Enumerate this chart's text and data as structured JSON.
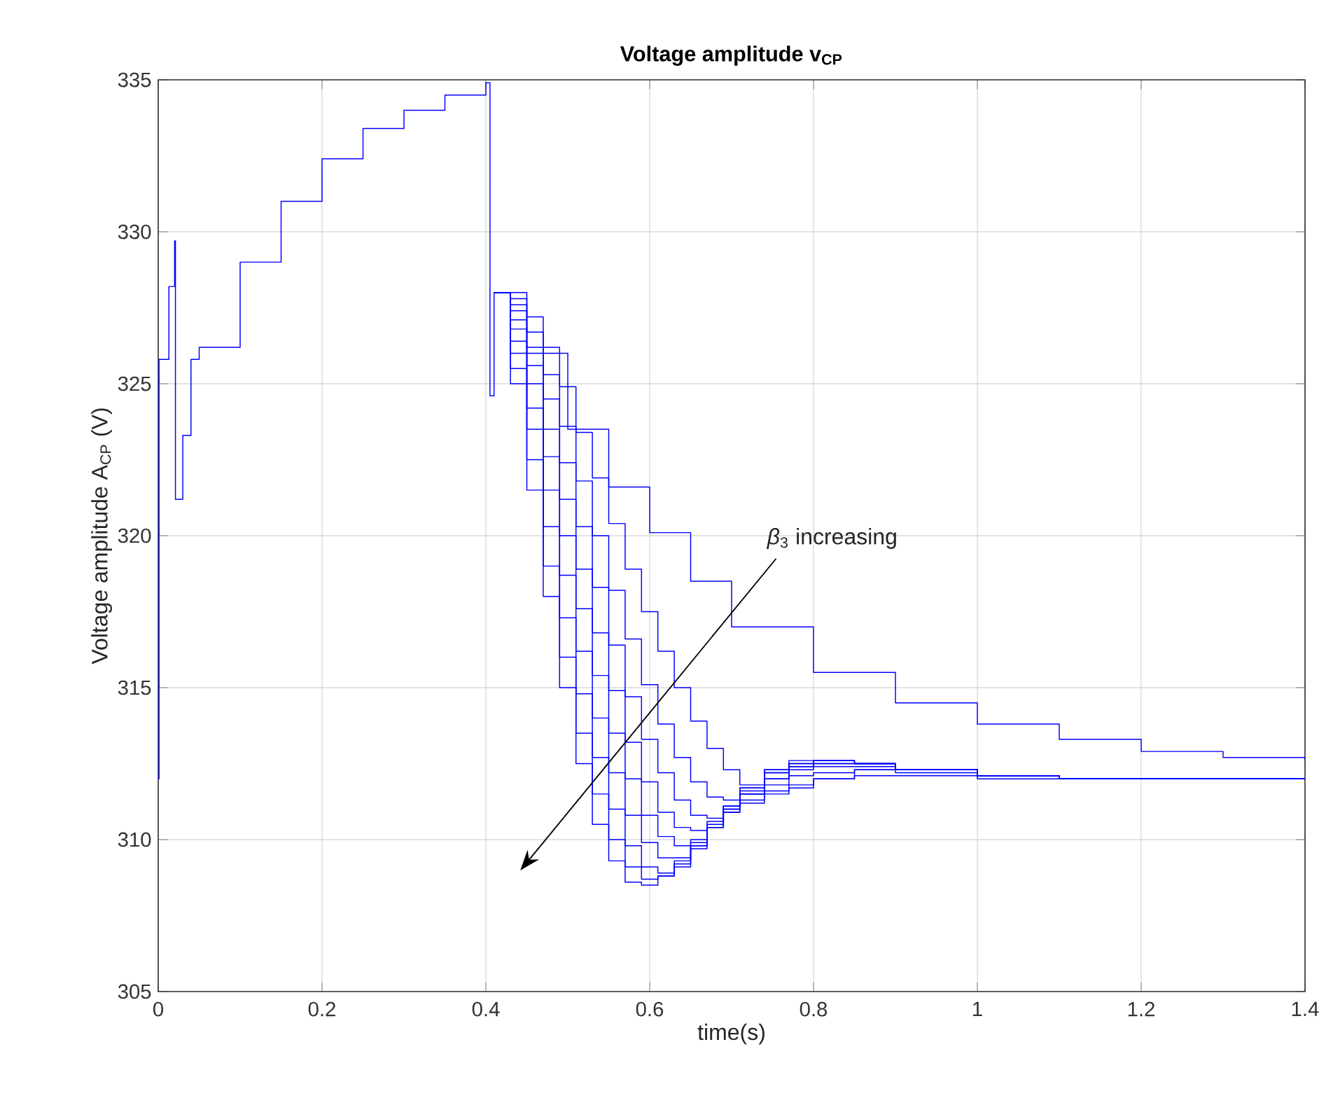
{
  "chart_data": {
    "type": "step",
    "title": "**Voltage amplitude v$_{CP}$**",
    "xlabel": "time(s)",
    "ylabel": "Voltage amplitude A$_{CP}$ (V)",
    "xlim": [
      0,
      1.4
    ],
    "ylim": [
      305,
      335
    ],
    "xticks": [
      0,
      0.2,
      0.4,
      0.6,
      0.8,
      1,
      1.2,
      1.4
    ],
    "yticks": [
      305,
      310,
      315,
      320,
      325,
      330,
      335
    ],
    "grid": true,
    "annotations": [
      "*β*$_{3}$ increasing"
    ],
    "series": [
      {
        "color": "#0000ff",
        "x": [
          0,
          0.001,
          0.013,
          0.02,
          0.021,
          0.03,
          0.04,
          0.05,
          0.1,
          0.15,
          0.2,
          0.25,
          0.3,
          0.35,
          0.4,
          0.405,
          0.41,
          0.45,
          0.5,
          0.55,
          0.6,
          0.65,
          0.7,
          0.8,
          0.9,
          1.0,
          1.1,
          1.2,
          1.3,
          1.4
        ],
        "values": [
          312,
          325.8,
          328.2,
          329.7,
          321.2,
          323.3,
          325.8,
          326.2,
          329.0,
          331.0,
          332.4,
          333.4,
          334.0,
          334.5,
          334.9,
          324.6,
          328,
          326,
          323.5,
          321.6,
          320.1,
          318.5,
          317.0,
          315.5,
          314.5,
          313.8,
          313.3,
          312.9,
          312.7,
          312.6
        ]
      },
      {
        "color": "#0000ff",
        "x": [
          0.41,
          0.43,
          0.45,
          0.47,
          0.49,
          0.51,
          0.53,
          0.55,
          0.57,
          0.59,
          0.61,
          0.63,
          0.65,
          0.67,
          0.69,
          0.71,
          0.74,
          0.77,
          0.8,
          0.85,
          0.9,
          1.0,
          1.1,
          1.2,
          1.4
        ],
        "values": [
          328,
          327.8,
          327.2,
          326.2,
          324.9,
          323.4,
          321.9,
          320.4,
          318.9,
          317.5,
          316.2,
          315,
          313.9,
          313,
          312.3,
          311.8,
          311.5,
          311.7,
          312,
          312.3,
          312.3,
          312.1,
          312,
          312,
          312
        ]
      },
      {
        "color": "#0000ff",
        "x": [
          0.41,
          0.43,
          0.45,
          0.47,
          0.49,
          0.51,
          0.53,
          0.55,
          0.57,
          0.59,
          0.61,
          0.63,
          0.65,
          0.67,
          0.69,
          0.71,
          0.74,
          0.77,
          0.8,
          0.85,
          0.9,
          1.0,
          1.1,
          1.2,
          1.4
        ],
        "values": [
          328,
          327.6,
          326.7,
          325.3,
          323.6,
          321.8,
          320,
          318.2,
          316.6,
          315.1,
          313.8,
          312.7,
          311.9,
          311.4,
          311.3,
          311.5,
          312,
          312.4,
          312.5,
          312.5,
          312.3,
          312.1,
          312,
          312,
          312
        ]
      },
      {
        "color": "#0000ff",
        "x": [
          0.41,
          0.43,
          0.45,
          0.47,
          0.49,
          0.51,
          0.53,
          0.55,
          0.57,
          0.59,
          0.61,
          0.63,
          0.65,
          0.67,
          0.69,
          0.71,
          0.74,
          0.77,
          0.8,
          0.85,
          0.9,
          1.0,
          1.1,
          1.2,
          1.4
        ],
        "values": [
          328,
          327.4,
          326.2,
          324.5,
          322.4,
          320.3,
          318.3,
          316.4,
          314.7,
          313.3,
          312.2,
          311.3,
          310.8,
          310.7,
          311,
          311.5,
          312.2,
          312.5,
          312.6,
          312.5,
          312.3,
          312.1,
          312,
          312,
          312
        ]
      },
      {
        "color": "#0000ff",
        "x": [
          0.41,
          0.43,
          0.45,
          0.47,
          0.49,
          0.51,
          0.53,
          0.55,
          0.57,
          0.59,
          0.61,
          0.63,
          0.65,
          0.67,
          0.69,
          0.71,
          0.74,
          0.77,
          0.8,
          0.85,
          0.9,
          1.0,
          1.1,
          1.2,
          1.4
        ],
        "values": [
          328,
          327.1,
          325.6,
          323.5,
          321.2,
          318.9,
          316.8,
          314.9,
          313.2,
          311.9,
          310.9,
          310.4,
          310.3,
          310.6,
          311.1,
          311.7,
          312.3,
          312.6,
          312.6,
          312.5,
          312.3,
          312.1,
          312,
          312,
          312
        ]
      },
      {
        "color": "#0000ff",
        "x": [
          0.41,
          0.43,
          0.45,
          0.47,
          0.49,
          0.51,
          0.53,
          0.55,
          0.57,
          0.59,
          0.61,
          0.63,
          0.65,
          0.67,
          0.69,
          0.71,
          0.74,
          0.77,
          0.8,
          0.85,
          0.9,
          1.0,
          1.1,
          1.2,
          1.4
        ],
        "values": [
          328,
          326.8,
          325,
          322.6,
          320,
          317.6,
          315.4,
          313.5,
          312,
          310.8,
          310.1,
          309.8,
          310,
          310.5,
          311.1,
          311.7,
          312.3,
          312.5,
          312.6,
          312.5,
          312.3,
          312.1,
          312,
          312,
          312
        ]
      },
      {
        "color": "#0000ff",
        "x": [
          0.41,
          0.43,
          0.45,
          0.47,
          0.49,
          0.51,
          0.53,
          0.55,
          0.57,
          0.59,
          0.61,
          0.63,
          0.65,
          0.67,
          0.69,
          0.71,
          0.74,
          0.77,
          0.8,
          0.85,
          0.9,
          1.0,
          1.1,
          1.2,
          1.4
        ],
        "values": [
          328,
          326.4,
          324.2,
          321.5,
          318.7,
          316.2,
          314,
          312.2,
          310.8,
          309.9,
          309.4,
          309.4,
          309.8,
          310.4,
          311.1,
          311.6,
          312.2,
          312.4,
          312.5,
          312.5,
          312.3,
          312.1,
          312,
          312,
          312
        ]
      },
      {
        "color": "#0000ff",
        "x": [
          0.41,
          0.43,
          0.45,
          0.47,
          0.49,
          0.51,
          0.53,
          0.55,
          0.57,
          0.59,
          0.61,
          0.63,
          0.65,
          0.67,
          0.69,
          0.71,
          0.74,
          0.77,
          0.8,
          0.85,
          0.9,
          1.0,
          1.1,
          1.2,
          1.4
        ],
        "values": [
          328,
          326,
          323.5,
          320.3,
          317.3,
          314.8,
          312.7,
          311,
          309.8,
          309.1,
          308.9,
          309.1,
          309.7,
          310.4,
          311,
          311.5,
          312,
          312.3,
          312.4,
          312.4,
          312.3,
          312.1,
          312,
          312,
          312
        ]
      },
      {
        "color": "#0000ff",
        "x": [
          0.41,
          0.43,
          0.45,
          0.47,
          0.49,
          0.51,
          0.53,
          0.55,
          0.57,
          0.59,
          0.61,
          0.63,
          0.65,
          0.67,
          0.69,
          0.71,
          0.74,
          0.77,
          0.8,
          0.85,
          0.9,
          1.0,
          1.1,
          1.2,
          1.4
        ],
        "values": [
          328,
          325.5,
          322.5,
          319,
          316,
          313.5,
          311.5,
          310,
          309.1,
          308.7,
          308.8,
          309.2,
          309.8,
          310.4,
          310.9,
          311.3,
          311.8,
          312.1,
          312.2,
          312.3,
          312.2,
          312.1,
          312,
          312,
          312
        ]
      },
      {
        "color": "#0000ff",
        "x": [
          0.41,
          0.43,
          0.45,
          0.47,
          0.49,
          0.51,
          0.53,
          0.55,
          0.57,
          0.59,
          0.61,
          0.63,
          0.65,
          0.67,
          0.69,
          0.71,
          0.74,
          0.77,
          0.8,
          0.85,
          0.9,
          1.0,
          1.1,
          1.2,
          1.4
        ],
        "values": [
          328,
          325,
          321.5,
          318,
          315,
          312.5,
          310.5,
          309.3,
          308.6,
          308.5,
          308.8,
          309.3,
          309.9,
          310.4,
          310.9,
          311.2,
          311.6,
          311.8,
          312.0,
          312.1,
          312.1,
          312.0,
          312.0,
          312.0,
          312.0
        ]
      }
    ]
  }
}
